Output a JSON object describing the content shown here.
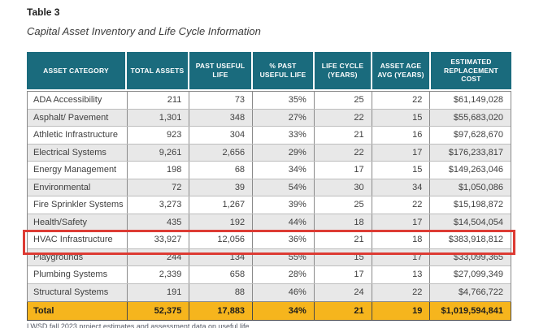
{
  "page": {
    "title": "Table 3",
    "subtitle": "Capital Asset Inventory and Life Cycle Information",
    "footnote_partial": "LWSD fall 2023 project estimates and assessment data on useful life"
  },
  "colors": {
    "header_bg": "#1A6B7D",
    "total_row_bg": "#F6B51D",
    "highlight_border": "#DD3B34",
    "alt_row_bg": "#E8E8E8"
  },
  "table": {
    "columns": [
      "ASSET CATEGORY",
      "TOTAL ASSETS",
      "PAST USEFUL LIFE",
      "% PAST USEFUL LIFE",
      "LIFE CYCLE (YEARS)",
      "ASSET AGE AVG (YEARS)",
      "ESTIMATED REPLACEMENT COST"
    ],
    "rows": [
      [
        "ADA Accessibility",
        "211",
        "73",
        "35%",
        "25",
        "22",
        "$61,149,028"
      ],
      [
        "Asphalt/ Pavement",
        "1,301",
        "348",
        "27%",
        "22",
        "15",
        "$55,683,020"
      ],
      [
        "Athletic Infrastructure",
        "923",
        "304",
        "33%",
        "21",
        "16",
        "$97,628,670"
      ],
      [
        "Electrical Systems",
        "9,261",
        "2,656",
        "29%",
        "22",
        "17",
        "$176,233,817"
      ],
      [
        "Energy Management",
        "198",
        "68",
        "34%",
        "17",
        "15",
        "$149,263,046"
      ],
      [
        "Environmental",
        "72",
        "39",
        "54%",
        "30",
        "34",
        "$1,050,086"
      ],
      [
        "Fire Sprinkler Systems",
        "3,273",
        "1,267",
        "39%",
        "25",
        "22",
        "$15,198,872"
      ],
      [
        "Health/Safety",
        "435",
        "192",
        "44%",
        "18",
        "17",
        "$14,504,054"
      ],
      [
        "HVAC Infrastructure",
        "33,927",
        "12,056",
        "36%",
        "21",
        "18",
        "$383,918,812"
      ],
      [
        "Playgrounds",
        "244",
        "134",
        "55%",
        "15",
        "17",
        "$33,099,365"
      ],
      [
        "Plumbing Systems",
        "2,339",
        "658",
        "28%",
        "17",
        "13",
        "$27,099,349"
      ],
      [
        "Structural Systems",
        "191",
        "88",
        "46%",
        "24",
        "22",
        "$4,766,722"
      ]
    ],
    "total_row": [
      "Total",
      "52,375",
      "17,883",
      "34%",
      "21",
      "19",
      "$1,019,594,841"
    ],
    "highlighted_category": "HVAC Infrastructure"
  }
}
